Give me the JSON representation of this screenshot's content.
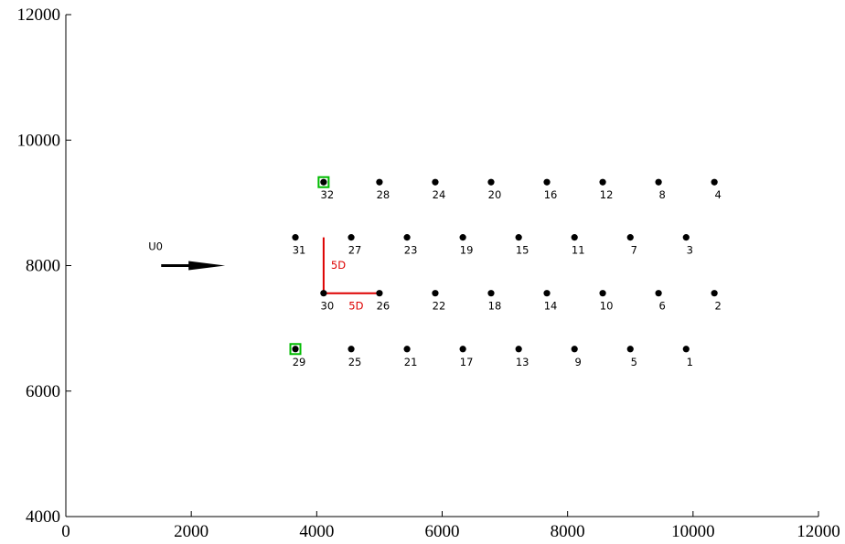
{
  "chart_data": {
    "type": "scatter",
    "x_range": [
      0,
      12000
    ],
    "y_range": [
      4000,
      12000
    ],
    "x_ticks": [
      "0",
      "2000",
      "4000",
      "6000",
      "8000",
      "10000",
      "12000"
    ],
    "y_ticks": [
      "4000",
      "6000",
      "8000",
      "10000",
      "12000"
    ],
    "grid": false,
    "turbines": [
      {
        "id": "1",
        "x": 9890,
        "y": 6670
      },
      {
        "id": "2",
        "x": 10340,
        "y": 7560
      },
      {
        "id": "3",
        "x": 9890,
        "y": 8450
      },
      {
        "id": "4",
        "x": 10340,
        "y": 9330
      },
      {
        "id": "5",
        "x": 9000,
        "y": 6670
      },
      {
        "id": "6",
        "x": 9450,
        "y": 7560
      },
      {
        "id": "7",
        "x": 9000,
        "y": 8450
      },
      {
        "id": "8",
        "x": 9450,
        "y": 9330
      },
      {
        "id": "9",
        "x": 8110,
        "y": 6670
      },
      {
        "id": "10",
        "x": 8560,
        "y": 7560
      },
      {
        "id": "11",
        "x": 8110,
        "y": 8450
      },
      {
        "id": "12",
        "x": 8560,
        "y": 9330
      },
      {
        "id": "13",
        "x": 7220,
        "y": 6670
      },
      {
        "id": "14",
        "x": 7670,
        "y": 7560
      },
      {
        "id": "15",
        "x": 7220,
        "y": 8450
      },
      {
        "id": "16",
        "x": 7670,
        "y": 9330
      },
      {
        "id": "17",
        "x": 6330,
        "y": 6670
      },
      {
        "id": "18",
        "x": 6780,
        "y": 7560
      },
      {
        "id": "19",
        "x": 6330,
        "y": 8450
      },
      {
        "id": "20",
        "x": 6780,
        "y": 9330
      },
      {
        "id": "21",
        "x": 5440,
        "y": 6670
      },
      {
        "id": "22",
        "x": 5890,
        "y": 7560
      },
      {
        "id": "23",
        "x": 5440,
        "y": 8450
      },
      {
        "id": "24",
        "x": 5890,
        "y": 9330
      },
      {
        "id": "25",
        "x": 4550,
        "y": 6670
      },
      {
        "id": "26",
        "x": 5000,
        "y": 7560
      },
      {
        "id": "27",
        "x": 4550,
        "y": 8450
      },
      {
        "id": "28",
        "x": 5000,
        "y": 9330
      },
      {
        "id": "29",
        "x": 3660,
        "y": 6670,
        "highlight": true
      },
      {
        "id": "30",
        "x": 4110,
        "y": 7560
      },
      {
        "id": "31",
        "x": 3660,
        "y": 8450
      },
      {
        "id": "32",
        "x": 4110,
        "y": 9330,
        "highlight": true
      }
    ],
    "wind": {
      "label": "U0",
      "x_from": 1520,
      "x_to": 2540,
      "y": 8000
    },
    "spacing": {
      "vertical": {
        "label": "5D",
        "x": 4110,
        "y_from": 7560,
        "y_to": 8450
      },
      "horizontal": {
        "label": "5D",
        "y": 7560,
        "x_from": 4110,
        "x_to": 5000
      }
    },
    "colors": {
      "turbine": "#000000",
      "highlight": "#00bb00",
      "spacing": "#dd0000",
      "axis": "#000000"
    }
  }
}
